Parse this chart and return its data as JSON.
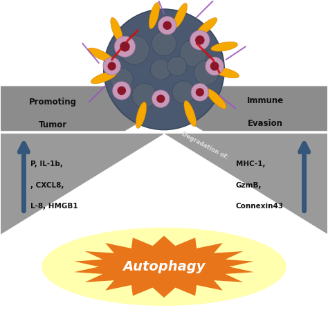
{
  "bg_color": "#ffffff",
  "left_arrow_text1": "Promoting",
  "left_arrow_text2": "Tumor",
  "right_arrow_text1": "Immune",
  "right_arrow_text2": "Evasion",
  "left_tri_lines": [
    "P, IL-1b,",
    ", CXCL8,",
    "L-8, HMGB1"
  ],
  "right_tri_lines": [
    "MHC-1,",
    "GzmB,",
    "Connexin43"
  ],
  "diagonal_text": "Degradation of:",
  "autophagy_text": "Autophagy",
  "arrow_gray": "#8c8c8c",
  "triangle_gray": "#9a9a9a",
  "blue_arrow_color": "#34567a",
  "orange_color": "#e8751a",
  "yellow_glow": "#ffffa0",
  "text_dark": "#111111",
  "text_white": "#ffffff",
  "text_diag": "#e0e0e0"
}
